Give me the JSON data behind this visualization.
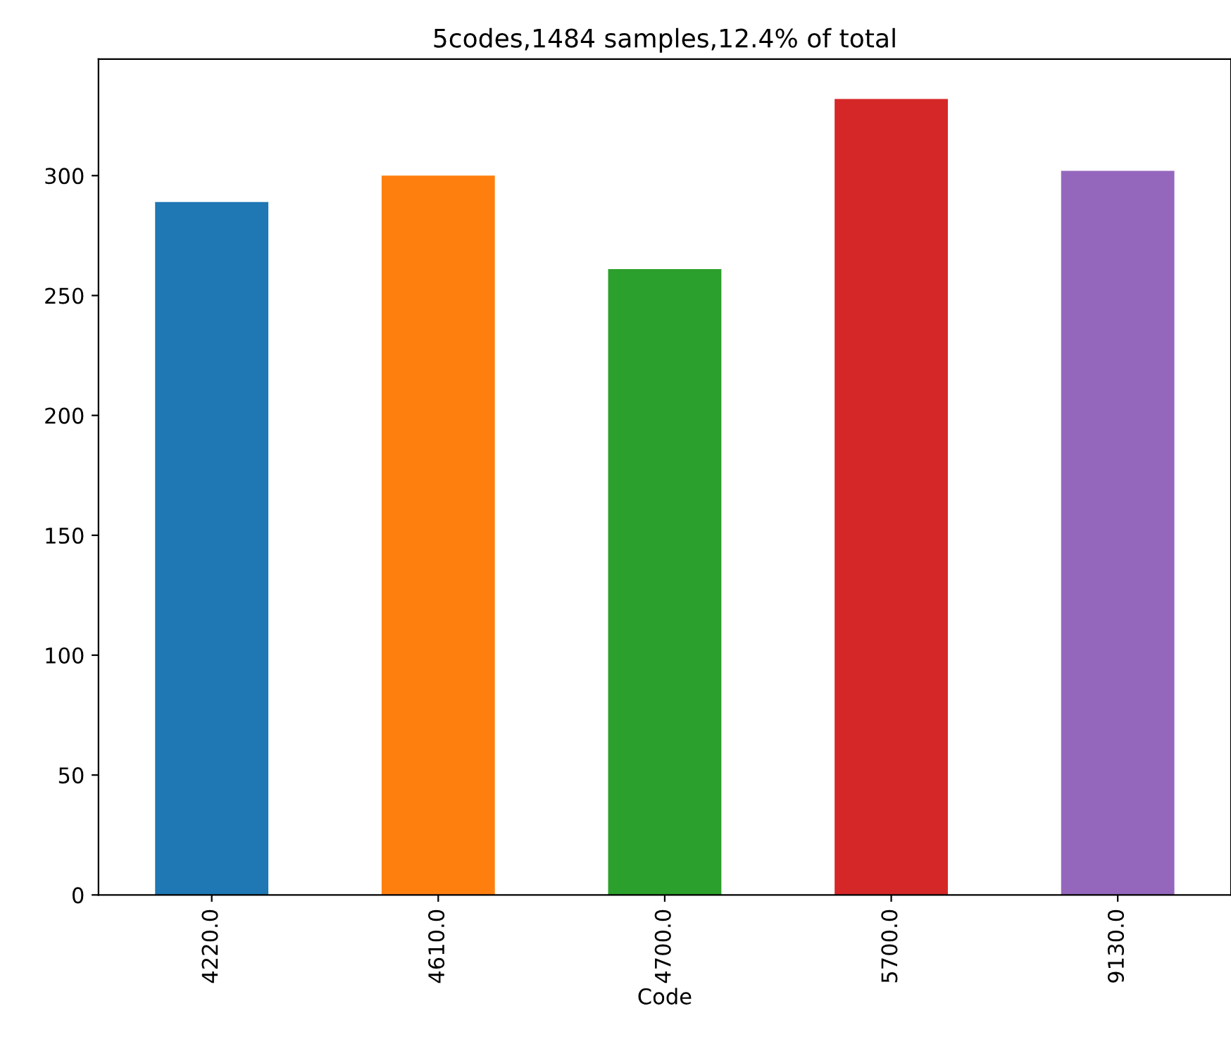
{
  "chart_data": {
    "type": "bar",
    "title": "5codes,1484 samples,12.4% of total",
    "xlabel": "Code",
    "categories": [
      "4220.0",
      "4610.0",
      "4700.0",
      "5700.0",
      "9130.0"
    ],
    "values": [
      289,
      300,
      261,
      332,
      302
    ],
    "colors": [
      "#1f77b4",
      "#ff7f0e",
      "#2ca02c",
      "#d62728",
      "#9467bd"
    ],
    "ylim": [
      0,
      348.6
    ],
    "yticks": [
      0,
      50,
      100,
      150,
      200,
      250,
      300
    ],
    "grid": false,
    "legend": false
  }
}
